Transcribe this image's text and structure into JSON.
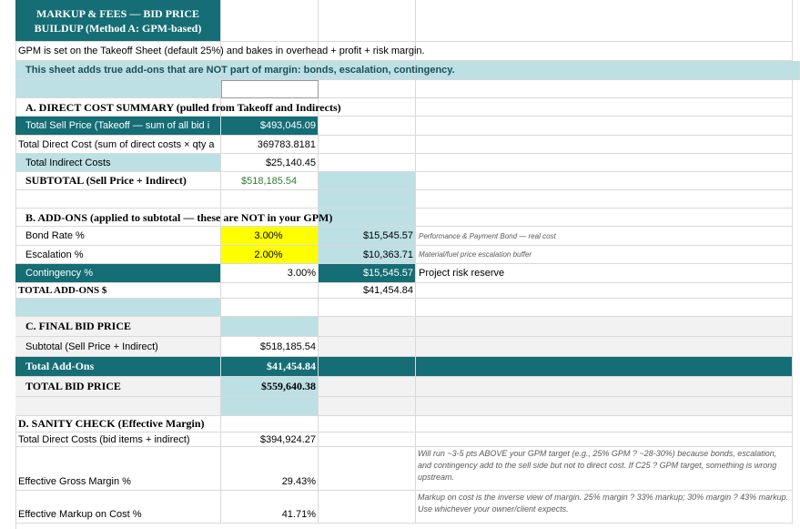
{
  "title_line1": "MARKUP & FEES — BID PRICE",
  "title_line2": "BUILDUP (Method A: GPM-based)",
  "intro_note": "GPM is set on the Takeoff Sheet (default 25%) and bakes in overhead + profit + risk margin.",
  "intro_note2": "This sheet adds true add-ons that are NOT part of margin: bonds, escalation, contingency.",
  "section_a": {
    "header": "A. DIRECT COST SUMMARY (pulled from Takeoff and Indirects)",
    "rows": [
      {
        "label": "Total Sell Price (Takeoff — sum of all bid i",
        "value": "$493,045.09"
      },
      {
        "label": "Total Direct Cost (sum of direct costs × qty a",
        "value": "369783.8181"
      },
      {
        "label": "Total Indirect Costs",
        "value": "$25,140.45"
      },
      {
        "label": "SUBTOTAL (Sell Price + Indirect)",
        "value": "$518,185.54"
      }
    ]
  },
  "section_b": {
    "header": "B. ADD-ONS (applied to subtotal — these are NOT in your GPM)",
    "rows": [
      {
        "label": "Bond Rate %",
        "rate": "3.00%",
        "amount": "$15,545.57",
        "note": "Performance & Payment Bond — real cost"
      },
      {
        "label": "Escalation %",
        "rate": "2.00%",
        "amount": "$10,363.71",
        "note": "Material/fuel price escalation buffer"
      },
      {
        "label": "Contingency %",
        "rate": "3.00%",
        "amount": "$15,545.57",
        "note": "Project risk reserve"
      }
    ],
    "total_label": "TOTAL ADD-ONS $",
    "total_value": "$41,454.84"
  },
  "section_c": {
    "header": "C. FINAL BID PRICE",
    "subtotal_label": "Subtotal (Sell Price + Indirect)",
    "subtotal_value": "$518,185.54",
    "addons_label": "Total Add-Ons",
    "addons_value": "$41,454.84",
    "bid_label": "TOTAL BID PRICE",
    "bid_value": "$559,640.38"
  },
  "section_d": {
    "header": "D. SANITY CHECK (Effective Margin)",
    "direct_label": "Total Direct Costs (bid items + indirect)",
    "direct_value": "$394,924.27",
    "gm_label": "Effective Gross Margin %",
    "gm_value": "29.43%",
    "gm_note": "Will run ~3-5 pts ABOVE your GPM target (e.g., 25% GPM ? ~28-30%) because bonds, escalation, and contingency add to the sell side but not to direct cost. If C25 ? GPM target, something is wrong upstream.",
    "mu_label": "Effective Markup on Cost %",
    "mu_value": "41.71%",
    "mu_note": "Markup on cost is the inverse view of margin. 25% margin ? 33% markup; 30% margin ? 43% markup. Use whichever your owner/client expects."
  }
}
